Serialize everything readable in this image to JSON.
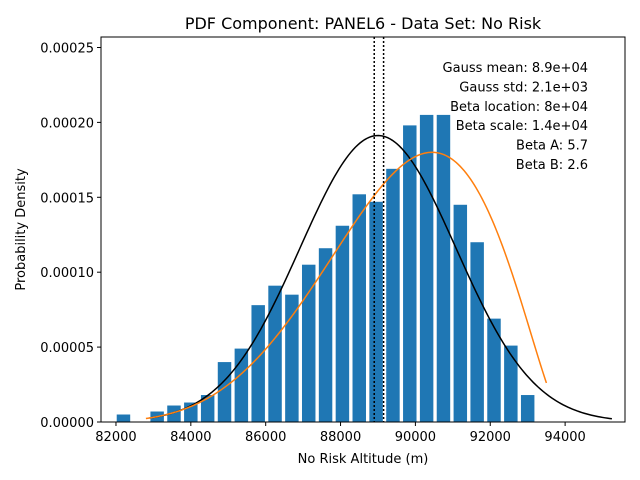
{
  "chart_data": {
    "type": "bar",
    "title": "PDF Component: PANEL6 - Data Set: No Risk",
    "xlabel": "No Risk Altitude (m)",
    "ylabel": "Probability Density",
    "xlim": [
      81600,
      95600
    ],
    "ylim": [
      0,
      0.000257
    ],
    "x_ticks": [
      82000,
      84000,
      86000,
      88000,
      90000,
      92000,
      94000
    ],
    "x_tick_labels": [
      "82000",
      "84000",
      "86000",
      "88000",
      "90000",
      "92000",
      "94000"
    ],
    "y_ticks": [
      0,
      5e-05,
      0.0001,
      0.00015,
      0.0002,
      0.00025
    ],
    "y_tick_labels": [
      "0.00000",
      "0.00005",
      "0.00010",
      "0.00015",
      "0.00020",
      "0.00025"
    ],
    "grid": false,
    "bar_color": "#1f77b4",
    "bar_width": 360,
    "bars": {
      "x": [
        82200,
        83100,
        83550,
        84000,
        84450,
        84900,
        85350,
        85800,
        86250,
        86700,
        87150,
        87600,
        88050,
        88500,
        88950,
        89400,
        89850,
        90300,
        90750,
        91200,
        91650,
        92100,
        92550,
        93000
      ],
      "values": [
        5e-06,
        7e-06,
        1.1e-05,
        1.3e-05,
        1.8e-05,
        4e-05,
        4.9e-05,
        7.8e-05,
        9.1e-05,
        8.5e-05,
        0.000105,
        0.000116,
        0.000131,
        0.000152,
        0.000147,
        0.000169,
        0.000198,
        0.000205,
        0.000205,
        0.000145,
        0.00012,
        6.9e-05,
        5.1e-05,
        1.8e-05
      ]
    },
    "series": [
      {
        "kind": "gauss",
        "color": "#000000",
        "mean": 89000,
        "std": 2086,
        "x_range": [
          82900,
          95250
        ]
      },
      {
        "kind": "beta",
        "color": "#ff7f0e",
        "loc": 80000,
        "scale": 14000,
        "a": 5.7,
        "b": 2.6,
        "x_range": [
          82800,
          93500
        ]
      }
    ],
    "vlines": [
      88900,
      89150
    ],
    "annotations": [
      "Gauss mean: 8.9e+04",
      "Gauss std: 2.1e+03",
      "Beta location: 8e+04",
      "Beta scale: 1.4e+04",
      "Beta A: 5.7",
      "Beta B: 2.6"
    ]
  }
}
